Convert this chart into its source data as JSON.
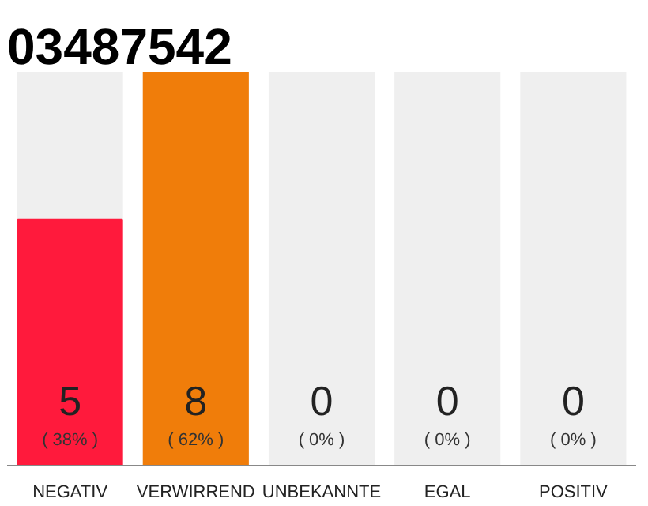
{
  "chart_data": {
    "type": "bar",
    "title": "03487542",
    "categories": [
      "NEGATIV",
      "VERWIRREND",
      "UNBEKANNTE",
      "EGAL",
      "POSITIV"
    ],
    "values": [
      5,
      8,
      0,
      0,
      0
    ],
    "colors": [
      "#ff1a3c",
      "#f07d0a",
      "#efefef",
      "#efefef",
      "#efefef"
    ],
    "value_labels": [
      "5",
      "8",
      "0",
      "0",
      "0"
    ],
    "annotations": [
      "( 38% )",
      "( 62% )",
      "( 0% )",
      "( 0% )",
      "( 0% )"
    ]
  }
}
